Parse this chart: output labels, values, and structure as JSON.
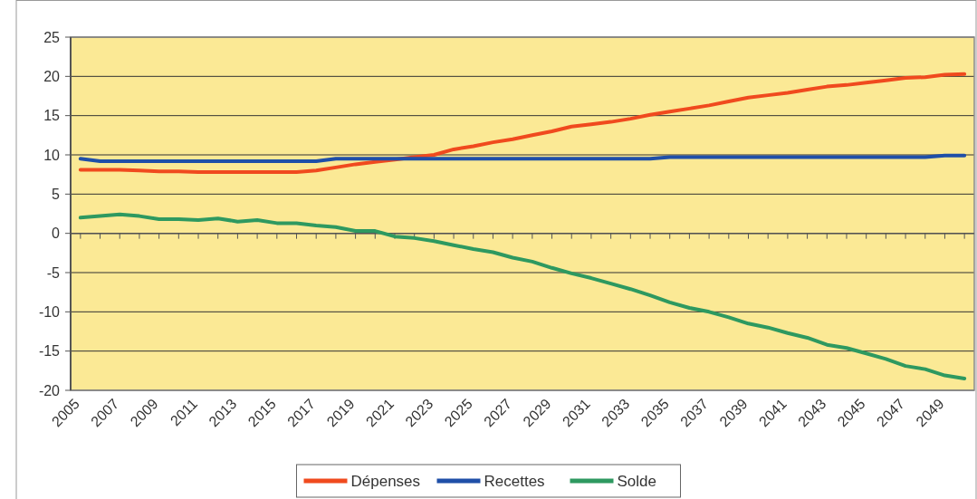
{
  "chart_data": {
    "type": "line",
    "categories": [
      "2005",
      null,
      "2007",
      null,
      "2009",
      null,
      "2011",
      null,
      "2013",
      null,
      "2015",
      null,
      "2017",
      null,
      "2019",
      null,
      "2021",
      null,
      "2023",
      null,
      "2025",
      null,
      "2027",
      null,
      "2029",
      null,
      "2031",
      null,
      "2033",
      null,
      "2035",
      null,
      "2037",
      null,
      "2039",
      null,
      "2041",
      null,
      "2043",
      null,
      "2045",
      null,
      "2047",
      null,
      "2049",
      null
    ],
    "series": [
      {
        "name": "Dépenses",
        "color": "#f04a1e",
        "values": [
          8.1,
          8.1,
          8.1,
          8.0,
          7.9,
          7.9,
          7.8,
          7.8,
          7.8,
          7.8,
          7.8,
          7.8,
          8.0,
          8.4,
          8.8,
          9.1,
          9.4,
          9.7,
          10.0,
          10.7,
          11.1,
          11.6,
          12.0,
          12.5,
          13.0,
          13.6,
          13.9,
          14.2,
          14.6,
          15.1,
          15.5,
          15.9,
          16.3,
          16.8,
          17.3,
          17.6,
          17.9,
          18.3,
          18.7,
          18.9,
          19.2,
          19.5,
          19.8,
          19.9,
          20.2,
          20.3
        ]
      },
      {
        "name": "Recettes",
        "color": "#1f4fa8",
        "values": [
          9.5,
          9.2,
          9.2,
          9.2,
          9.2,
          9.2,
          9.2,
          9.2,
          9.2,
          9.2,
          9.2,
          9.2,
          9.2,
          9.5,
          9.5,
          9.5,
          9.5,
          9.5,
          9.5,
          9.5,
          9.5,
          9.5,
          9.5,
          9.5,
          9.5,
          9.5,
          9.5,
          9.5,
          9.5,
          9.5,
          9.7,
          9.7,
          9.7,
          9.7,
          9.7,
          9.7,
          9.7,
          9.7,
          9.7,
          9.7,
          9.7,
          9.7,
          9.7,
          9.7,
          9.9,
          9.9
        ]
      },
      {
        "name": "Solde",
        "color": "#2e9960",
        "values": [
          2.0,
          2.2,
          2.4,
          2.2,
          1.8,
          1.8,
          1.7,
          1.9,
          1.5,
          1.7,
          1.3,
          1.3,
          1.0,
          0.8,
          0.3,
          0.3,
          -0.4,
          -0.6,
          -1.0,
          -1.5,
          -2.0,
          -2.4,
          -3.1,
          -3.6,
          -4.4,
          -5.1,
          -5.7,
          -6.4,
          -7.1,
          -7.9,
          -8.8,
          -9.5,
          -10.0,
          -10.7,
          -11.5,
          -12.0,
          -12.7,
          -13.3,
          -14.2,
          -14.6,
          -15.3,
          -16.0,
          -16.9,
          -17.3,
          -18.1,
          -18.5
        ]
      }
    ],
    "ylim": [
      -20,
      25
    ],
    "yticks": [
      -20,
      -15,
      -10,
      -5,
      0,
      5,
      10,
      15,
      20,
      25
    ],
    "grid": "y",
    "legend": "bottom",
    "marker": "none",
    "line_style": "solid"
  }
}
